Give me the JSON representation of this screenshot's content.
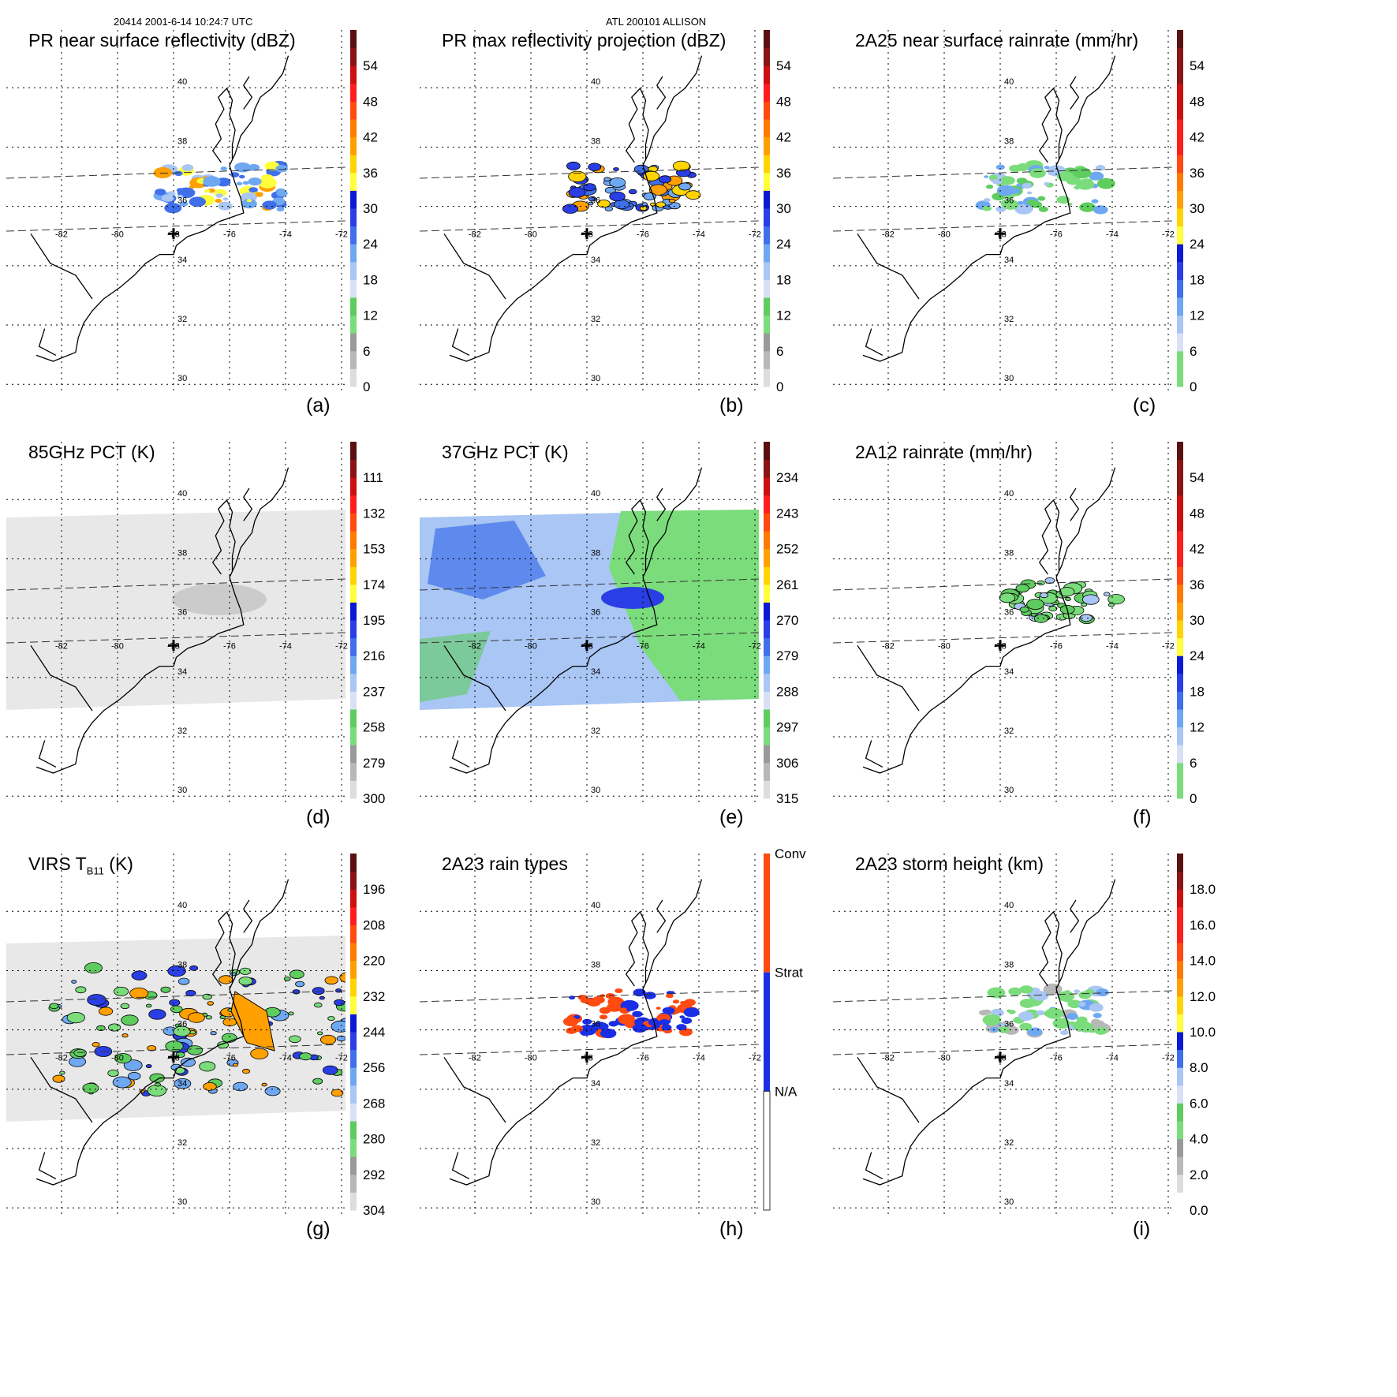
{
  "header": {
    "left": "20414 2001-6-14 10:24:7 UTC",
    "center": "ATL 200101 ALLISON"
  },
  "colors": {
    "scale": [
      "#ffffff",
      "#dddddd",
      "#b8b8b8",
      "#9a9a9a",
      "#7bdc7b",
      "#5fcc5f",
      "#d8e0f6",
      "#a9c6f4",
      "#6fa8f2",
      "#3f70ea",
      "#2a3ee6",
      "#0a1ad4",
      "#ffff3c",
      "#ffd400",
      "#ffa000",
      "#ff7a00",
      "#ff4a10",
      "#ff1e1e",
      "#cc1010",
      "#8a1414",
      "#5a1010"
    ],
    "rain_types": {
      "conv": "#ff4a10",
      "strat": "#1a2ee6",
      "na": "#ffffff"
    },
    "coast": "#000000",
    "grid": "#000000"
  },
  "map": {
    "lon_labels": [
      "-82",
      "-80",
      "-78",
      "-76",
      "-74",
      "-72"
    ],
    "lat_labels": [
      "40",
      "38",
      "36",
      "34",
      "32",
      "30"
    ]
  },
  "panels": [
    {
      "id": "a",
      "title": "PR near surface reflectivity (dBZ)",
      "letter": "(a)",
      "colorbar": {
        "ticks": [
          "0",
          "6",
          "12",
          "18",
          "24",
          "30",
          "36",
          "42",
          "48",
          "54"
        ]
      },
      "field": "pr"
    },
    {
      "id": "b",
      "title": "PR max reflectivity projection (dBZ)",
      "letter": "(b)",
      "colorbar": {
        "ticks": [
          "0",
          "6",
          "12",
          "18",
          "24",
          "30",
          "36",
          "42",
          "48",
          "54"
        ]
      },
      "field": "prmax"
    },
    {
      "id": "c",
      "title": "2A25 near surface rainrate (mm/hr)",
      "letter": "(c)",
      "colorbar": {
        "ticks": [
          "0",
          "6",
          "12",
          "18",
          "24",
          "30",
          "36",
          "42",
          "48",
          "54"
        ]
      },
      "field": "rain25"
    },
    {
      "id": "d",
      "title": "85GHz PCT (K)",
      "letter": "(d)",
      "colorbar": {
        "ticks": [
          "300",
          "279",
          "258",
          "237",
          "216",
          "195",
          "174",
          "153",
          "132",
          "111"
        ]
      },
      "field": "pct85"
    },
    {
      "id": "e",
      "title": "37GHz PCT (K)",
      "letter": "(e)",
      "colorbar": {
        "ticks": [
          "315",
          "306",
          "297",
          "288",
          "279",
          "270",
          "261",
          "252",
          "243",
          "234"
        ]
      },
      "field": "pct37"
    },
    {
      "id": "f",
      "title": "2A12 rainrate (mm/hr)",
      "letter": "(f)",
      "colorbar": {
        "ticks": [
          "0",
          "6",
          "12",
          "18",
          "24",
          "30",
          "36",
          "42",
          "48",
          "54"
        ]
      },
      "field": "rain12"
    },
    {
      "id": "g",
      "title": "VIRS T",
      "title_sub": "B11",
      "title_suffix": " (K)",
      "letter": "(g)",
      "colorbar": {
        "ticks": [
          "304",
          "292",
          "280",
          "268",
          "256",
          "244",
          "232",
          "220",
          "208",
          "196"
        ]
      },
      "field": "virs"
    },
    {
      "id": "h",
      "title": "2A23 rain types",
      "letter": "(h)",
      "colorbar": {
        "ticks": [
          "N/A",
          "Strat",
          "Conv"
        ]
      },
      "field": "types"
    },
    {
      "id": "i",
      "title": "2A23 storm height (km)",
      "letter": "(i)",
      "colorbar": {
        "ticks": [
          "0.0",
          "2.0",
          "4.0",
          "6.0",
          "8.0",
          "10.0",
          "12.0",
          "14.0",
          "16.0",
          "18.0"
        ]
      },
      "field": "height"
    }
  ]
}
